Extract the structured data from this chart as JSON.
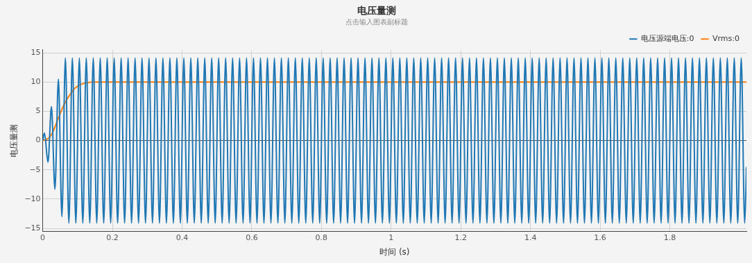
{
  "chart_data": {
    "type": "line",
    "title": "电压量测",
    "subtitle": "点击输入图表副标题",
    "xlabel": "时间 (s)",
    "ylabel": "电压量测",
    "xlim": [
      0,
      2.02
    ],
    "xticks": [
      0,
      0.2,
      0.4,
      0.6,
      0.8,
      1,
      1.2,
      1.4,
      1.6,
      1.8
    ],
    "ylim": [
      -15.5,
      15.5
    ],
    "yticks": [
      -15,
      -10,
      -5,
      0,
      5,
      10,
      15
    ],
    "grid": true,
    "legend": "top right",
    "marker": "none",
    "line_style": "solid",
    "series": [
      {
        "name": "电压源端电压:0",
        "color": "#1f77b4",
        "x": [
          0,
          0.005,
          0.015,
          0.025,
          0.035,
          0.045,
          0.055,
          0.065,
          0.075,
          0.085,
          0.095,
          0.105,
          0.115,
          0.125,
          0.135,
          0.145,
          0.155,
          0.165,
          0.175,
          0.185,
          0.195,
          0.205,
          0.215,
          0.225,
          0.235,
          0.245,
          0.255,
          0.265,
          0.275,
          0.285,
          0.295,
          0.305,
          0.315,
          0.325,
          0.335,
          0.345,
          0.355,
          0.365,
          0.375,
          0.385,
          0.395,
          0.405,
          0.415,
          0.425,
          0.435,
          0.445,
          0.455,
          0.465,
          0.475,
          0.485,
          0.495,
          0.505,
          0.515,
          0.525,
          0.535,
          0.545,
          0.555,
          0.565,
          0.575,
          0.585,
          0.595,
          0.605,
          0.615,
          0.625,
          0.635,
          0.645,
          0.655,
          0.665,
          0.675,
          0.685,
          0.695,
          0.705,
          0.715,
          0.725,
          0.735,
          0.745,
          0.755,
          0.765,
          0.775,
          0.785,
          0.795,
          0.805,
          0.815,
          0.825,
          0.835,
          0.845,
          0.855,
          0.865,
          0.875,
          0.885,
          0.895,
          0.905,
          0.915,
          0.925,
          0.935,
          0.945,
          0.955,
          0.965,
          0.975,
          0.985,
          0.995,
          1.005,
          1.015,
          1.025,
          1.035,
          1.045,
          1.055,
          1.065,
          1.075,
          1.085,
          1.095,
          1.105,
          1.115,
          1.125,
          1.135,
          1.145,
          1.155,
          1.165,
          1.175,
          1.185,
          1.195,
          1.205,
          1.215,
          1.225,
          1.235,
          1.245,
          1.255,
          1.265,
          1.275,
          1.285,
          1.295,
          1.305,
          1.315,
          1.325,
          1.335,
          1.345,
          1.355,
          1.365,
          1.375,
          1.385,
          1.395,
          1.405,
          1.415,
          1.425,
          1.435,
          1.445,
          1.455,
          1.465,
          1.475,
          1.485,
          1.495,
          1.505,
          1.515,
          1.525,
          1.535,
          1.545,
          1.555,
          1.565,
          1.575,
          1.585,
          1.595,
          1.605,
          1.615,
          1.625,
          1.635,
          1.645,
          1.655,
          1.665,
          1.675,
          1.685,
          1.695,
          1.705,
          1.715,
          1.725,
          1.735,
          1.745,
          1.755,
          1.765,
          1.775,
          1.785,
          1.795,
          1.805,
          1.815,
          1.825,
          1.835,
          1.845,
          1.855,
          1.865,
          1.875,
          1.885,
          1.895,
          1.905,
          1.915,
          1.925,
          1.935,
          1.945,
          1.955,
          1.965,
          1.975,
          1.985,
          1.995,
          2.005,
          2.015,
          2.02
        ],
        "values": [
          0,
          1.3,
          -3.7,
          5.8,
          -8.3,
          10.5,
          -13,
          14.1,
          -14.1,
          14.1,
          -14.1,
          14.1,
          -14.1,
          14.1,
          -14.1,
          14.1,
          -14.1,
          14.1,
          -14.1,
          14.1,
          -14.1,
          14.1,
          -14.1,
          14.1,
          -14.1,
          14.1,
          -14.1,
          14.1,
          -14.1,
          14.1,
          -14.1,
          14.1,
          -14.1,
          14.1,
          -14.1,
          14.1,
          -14.1,
          14.1,
          -14.1,
          14.1,
          -14.1,
          14.1,
          -14.1,
          14.1,
          -14.1,
          14.1,
          -14.1,
          14.1,
          -14.1,
          14.1,
          -14.1,
          14.1,
          -14.1,
          14.1,
          -14.1,
          14.1,
          -14.1,
          14.1,
          -14.1,
          14.1,
          -14.1,
          14.1,
          -14.1,
          14.1,
          -14.1,
          14.1,
          -14.1,
          14.1,
          -14.1,
          14.1,
          -14.1,
          14.1,
          -14.1,
          14.1,
          -14.1,
          14.1,
          -14.1,
          14.1,
          -14.1,
          14.1,
          -14.1,
          14.1,
          -14.1,
          14.1,
          -14.1,
          14.1,
          -14.1,
          14.1,
          -14.1,
          14.1,
          -14.1,
          14.1,
          -14.1,
          14.1,
          -14.1,
          14.1,
          -14.1,
          14.1,
          -14.1,
          14.1,
          -14.1,
          14.1,
          -14.1,
          14.1,
          -14.1,
          14.1,
          -14.1,
          14.1,
          -14.1,
          14.1,
          -14.1,
          14.1,
          -14.1,
          14.1,
          -14.1,
          14.1,
          -14.1,
          14.1,
          -14.1,
          14.1,
          -14.1,
          14.1,
          -14.1,
          14.1,
          -14.1,
          14.1,
          -14.1,
          14.1,
          -14.1,
          14.1,
          -14.1,
          14.1,
          -14.1,
          14.1,
          -14.1,
          14.1,
          -14.1,
          14.1,
          -14.1,
          14.1,
          -14.1,
          14.1,
          -14.1,
          14.1,
          -14.1,
          14.1,
          -14.1,
          14.1,
          -14.1,
          14.1,
          -14.1,
          14.1,
          -14.1,
          14.1,
          -14.1,
          14.1,
          -14.1,
          14.1,
          -14.1,
          14.1,
          -14.1,
          14.1,
          -14.1,
          14.1,
          -14.1,
          14.1,
          -14.1,
          14.1,
          -14.1,
          14.1,
          -14.1,
          14.1,
          -14.1,
          14.1,
          -14.1,
          14.1,
          -14.1,
          14.1,
          -14.1,
          14.1,
          -14.1,
          14.1,
          -14.1,
          14.1,
          -14.1,
          14.1,
          -14.1,
          14.1,
          -14.1,
          14.1,
          -14.1,
          14.1,
          -14.1,
          14.1,
          -14.1,
          14.1,
          -14.1,
          14.1,
          -14.1,
          14.1,
          -14.1,
          14.1,
          -14.1,
          -4.5
        ]
      },
      {
        "name": "Vrms:0",
        "color": "#ff7f0e",
        "x": [
          0,
          0.01,
          0.02,
          0.03,
          0.04,
          0.05,
          0.06,
          0.07,
          0.08,
          0.09,
          0.1,
          0.11,
          0.12,
          0.13,
          0.14,
          2.02
        ],
        "values": [
          0,
          0.2,
          0.6,
          1.6,
          3.1,
          4.6,
          6,
          7.1,
          8,
          8.8,
          9.3,
          9.6,
          9.8,
          9.9,
          10,
          10
        ]
      }
    ]
  }
}
